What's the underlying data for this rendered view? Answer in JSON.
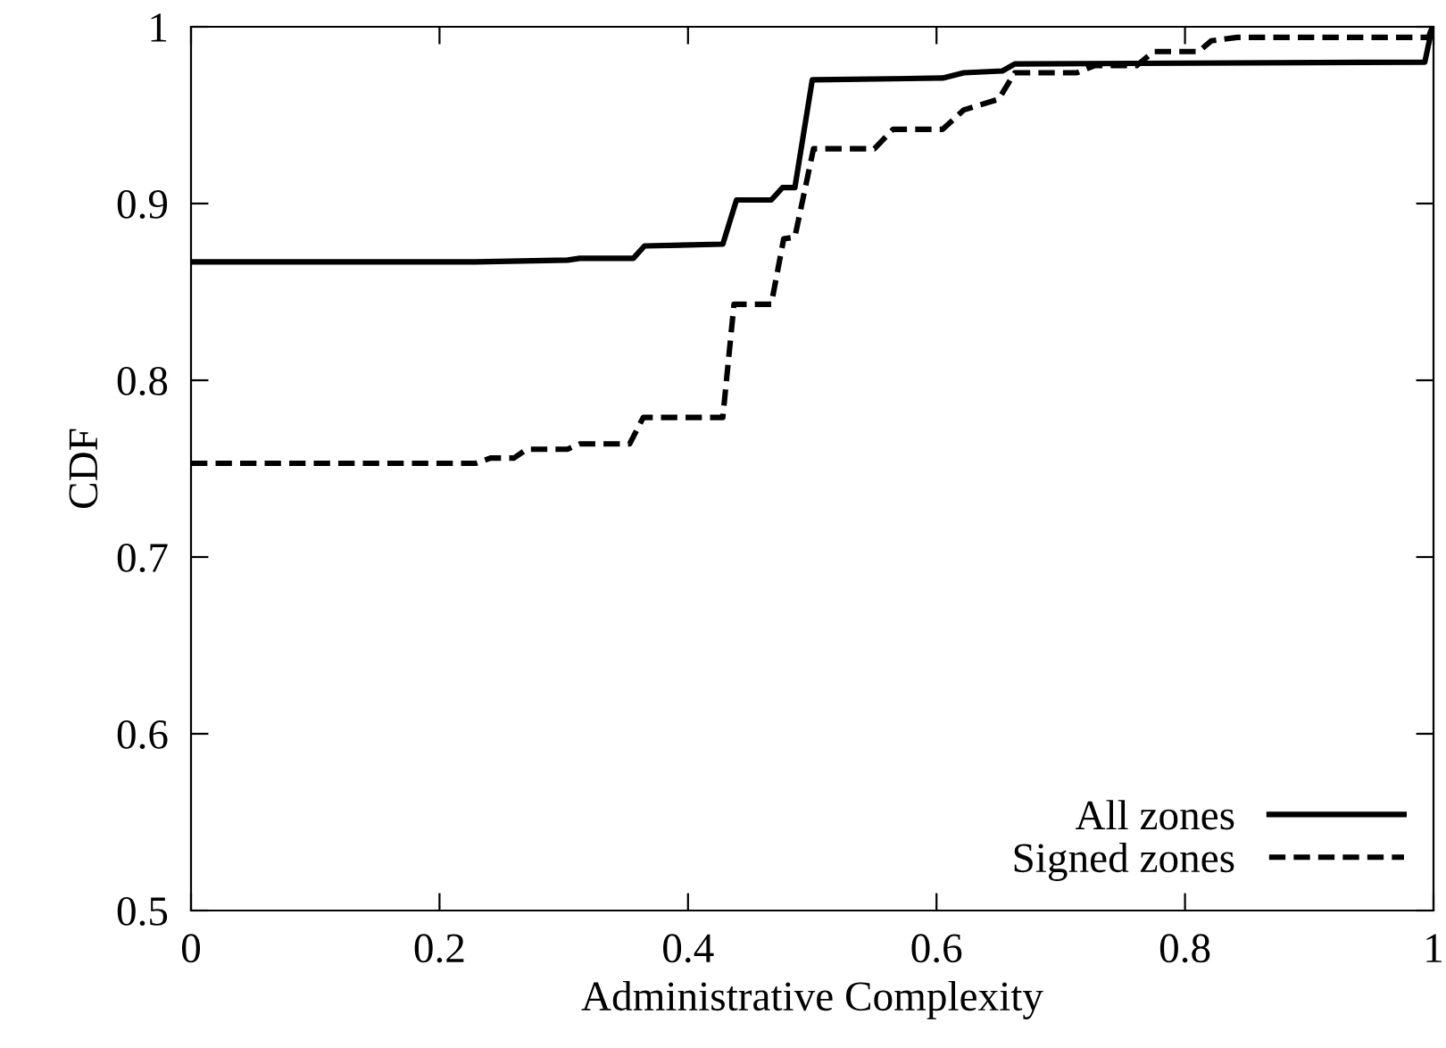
{
  "chart_data": {
    "type": "line",
    "xlabel": "Administrative Complexity",
    "ylabel": "CDF",
    "xlim": [
      0,
      1
    ],
    "ylim": [
      0.5,
      1
    ],
    "xticks": [
      0,
      0.2,
      0.4,
      0.6,
      0.8,
      1
    ],
    "yticks": [
      0.5,
      0.6,
      0.7,
      0.8,
      0.9,
      1
    ],
    "legend": "bottom right",
    "grid": false,
    "marker": "none",
    "series": [
      {
        "name": "All zones",
        "color": "#000000",
        "line_style": "solid",
        "x": [
          0,
          0.229,
          0.303,
          0.313,
          0.356,
          0.365,
          0.428,
          0.439,
          0.467,
          0.476,
          0.486,
          0.5,
          0.502,
          0.605,
          0.622,
          0.653,
          0.663,
          0.993,
          0.999
        ],
        "values": [
          0.867,
          0.867,
          0.868,
          0.869,
          0.869,
          0.876,
          0.877,
          0.902,
          0.902,
          0.909,
          0.909,
          0.97,
          0.97,
          0.971,
          0.974,
          0.975,
          0.979,
          0.98,
          1.0
        ]
      },
      {
        "name": "Signed zones",
        "color": "#000000",
        "line_style": "dashed",
        "x": [
          0,
          0.229,
          0.241,
          0.26,
          0.27,
          0.303,
          0.313,
          0.353,
          0.364,
          0.428,
          0.437,
          0.467,
          0.477,
          0.486,
          0.501,
          0.55,
          0.565,
          0.605,
          0.622,
          0.65,
          0.663,
          0.713,
          0.727,
          0.761,
          0.775,
          0.811,
          0.821,
          0.842,
          0.996,
          0.999
        ],
        "values": [
          0.753,
          0.753,
          0.756,
          0.756,
          0.761,
          0.761,
          0.764,
          0.764,
          0.779,
          0.779,
          0.843,
          0.843,
          0.88,
          0.881,
          0.931,
          0.931,
          0.942,
          0.942,
          0.953,
          0.959,
          0.974,
          0.974,
          0.978,
          0.978,
          0.986,
          0.986,
          0.992,
          0.994,
          0.994,
          1.0
        ]
      }
    ]
  }
}
